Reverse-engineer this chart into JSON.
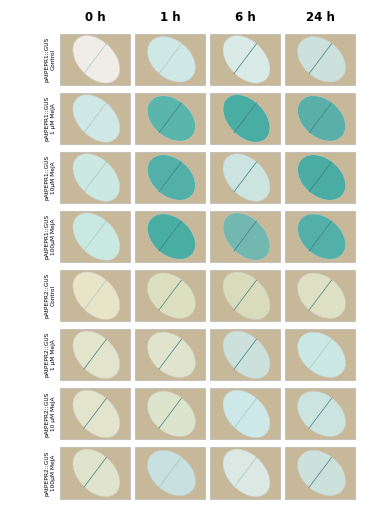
{
  "col_headers": [
    "0 h",
    "1 h",
    "6 h",
    "24 h"
  ],
  "row_labels": [
    "pAtPEPR1::GUS\nControl",
    "pAtPEPR1::GUS\n1 μM MeJA",
    "pAtPEPR1::GUS\n10μM MeJA",
    "pAtPEPR1::GUS\n100μM MeJA",
    "pAtPEPR2::GUS\nControl",
    "pAtPEPR2::GUS\n1 μM MeJA",
    "pAtPEPR2::GUS\n10 μM MeJA",
    "pAtPEPR2::GUS\n100μM MeJA"
  ],
  "n_rows": 8,
  "n_cols": 4,
  "background_color": "#c8b89a",
  "cell_bg": "#c8b89a",
  "label_fontsize": 4.2,
  "header_fontsize": 8.5,
  "figure_bg": "#ffffff",
  "border_color": "#888888",
  "leaf_colors": [
    [
      "#f0ede8",
      "#cde8e5",
      "#daeae7",
      "#cce0dc"
    ],
    [
      "#d0e8e5",
      "#5ab5aa",
      "#4aada3",
      "#5ab0a8"
    ],
    [
      "#cce8e3",
      "#52b0a8",
      "#cce4e0",
      "#4aaca3"
    ],
    [
      "#c8e8e0",
      "#4aada3",
      "#72b8b0",
      "#52b0a8"
    ],
    [
      "#e8e4c8",
      "#dde0c0",
      "#d8dcbc",
      "#dde0c2"
    ],
    [
      "#e2e4cc",
      "#e0e4cc",
      "#cce0dc",
      "#cce8e4"
    ],
    [
      "#e2e4cc",
      "#dce4cc",
      "#cce8e8",
      "#cce4e0"
    ],
    [
      "#e0e4cc",
      "#c8e0e0",
      "#dce8e4",
      "#cce0dc"
    ]
  ]
}
